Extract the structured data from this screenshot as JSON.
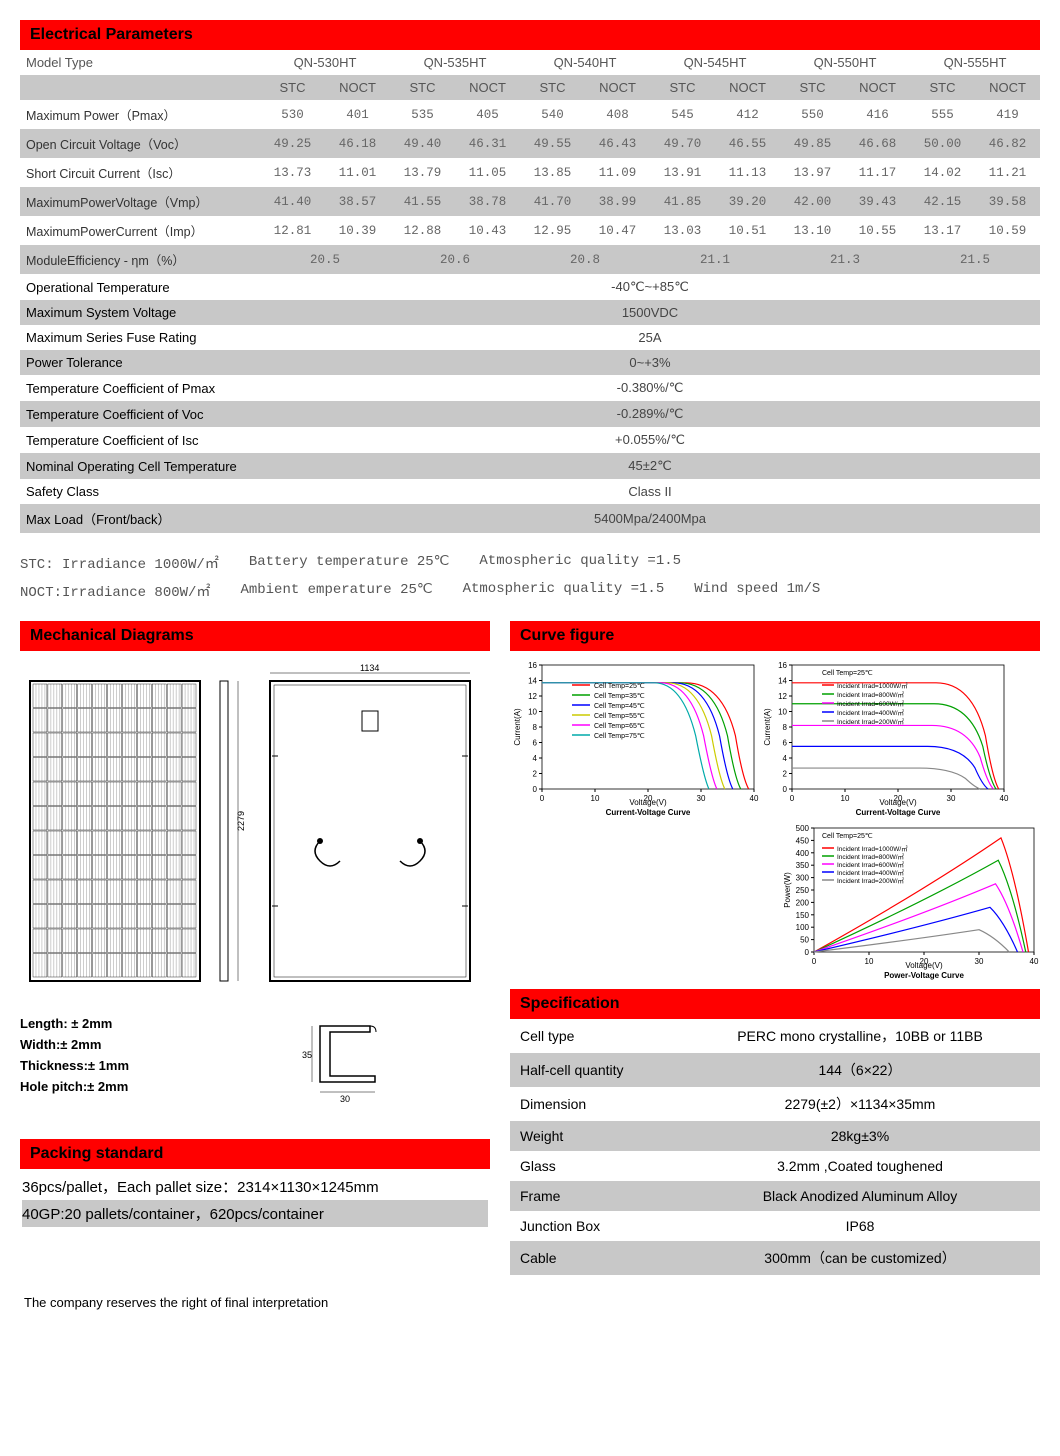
{
  "headers": {
    "electrical": "Electrical Parameters",
    "mechanical": "Mechanical Diagrams",
    "curve": "Curve figure",
    "spec": "Specification",
    "packing": "Packing standard"
  },
  "models": [
    "QN-530HT",
    "QN-535HT",
    "QN-540HT",
    "QN-545HT",
    "QN-550HT",
    "QN-555HT"
  ],
  "stc_labels": [
    "STC",
    "NOCT"
  ],
  "model_type_label": "Model Type",
  "elec_rows": [
    {
      "label": "Maximum Power（Pmax）",
      "vals": [
        "530",
        "401",
        "535",
        "405",
        "540",
        "408",
        "545",
        "412",
        "550",
        "416",
        "555",
        "419"
      ],
      "grey": false
    },
    {
      "label": "Open Circuit Voltage（Voc）",
      "vals": [
        "49.25",
        "46.18",
        "49.40",
        "46.31",
        "49.55",
        "46.43",
        "49.70",
        "46.55",
        "49.85",
        "46.68",
        "50.00",
        "46.82"
      ],
      "grey": true
    },
    {
      "label": "Short Circuit Current（Isc）",
      "vals": [
        "13.73",
        "11.01",
        "13.79",
        "11.05",
        "13.85",
        "11.09",
        "13.91",
        "11.13",
        "13.97",
        "11.17",
        "14.02",
        "11.21"
      ],
      "grey": false
    },
    {
      "label": "MaximumPowerVoltage（Vmp）",
      "vals": [
        "41.40",
        "38.57",
        "41.55",
        "38.78",
        "41.70",
        "38.99",
        "41.85",
        "39.20",
        "42.00",
        "39.43",
        "42.15",
        "39.58"
      ],
      "grey": true
    },
    {
      "label": "MaximumPowerCurrent（Imp）",
      "vals": [
        "12.81",
        "10.39",
        "12.88",
        "10.43",
        "12.95",
        "10.47",
        "13.03",
        "10.51",
        "13.10",
        "10.55",
        "13.17",
        "10.59"
      ],
      "grey": false
    }
  ],
  "eff_row": {
    "label": "ModuleEfficiency - ηm（%）",
    "vals": [
      "20.5",
      "20.6",
      "20.8",
      "21.1",
      "21.3",
      "21.5"
    ]
  },
  "single_rows": [
    {
      "label": "Operational Temperature",
      "val": "-40℃~+85℃",
      "grey": false
    },
    {
      "label": "Maximum System Voltage",
      "val": "1500VDC",
      "grey": true
    },
    {
      "label": "Maximum Series Fuse Rating",
      "val": "25A",
      "grey": false
    },
    {
      "label": "Power Tolerance",
      "val": "0~+3%",
      "grey": true
    },
    {
      "label": "Temperature Coefficient of Pmax",
      "val": "-0.380%/℃",
      "grey": false
    },
    {
      "label": "Temperature Coefficient of Voc",
      "val": "-0.289%/℃",
      "grey": true
    },
    {
      "label": "Temperature Coefficient of Isc",
      "val": "+0.055%/℃",
      "grey": false
    },
    {
      "label": "Nominal Operating Cell Temperature",
      "val": "45±2℃",
      "grey": true
    },
    {
      "label": "Safety Class",
      "val": "Class II",
      "grey": false
    },
    {
      "label": "Max Load（Front/back）",
      "val": "5400Mpa/2400Mpa",
      "grey": true
    }
  ],
  "notes": {
    "l1a": "STC: Irradiance 1000W/㎡",
    "l1b": "Battery temperature 25℃",
    "l1c": "Atmospheric quality =1.5",
    "l2a": "NOCT:Irradiance 800W/㎡",
    "l2b": "Ambient emperature 25℃",
    "l2c": "Atmospheric quality =1.5",
    "l2d": "Wind speed 1m/S"
  },
  "mech": {
    "width_dim": "1134",
    "height_dim": "2279",
    "profile_h": "35",
    "profile_w": "30",
    "tol_length": "Length: ± 2mm",
    "tol_width": "Width:± 2mm",
    "tol_thick": "Thickness:± 1mm",
    "tol_hole": "Hole pitch:± 2mm",
    "panel_cols": 11,
    "panel_rows_half": 6
  },
  "spec2": [
    {
      "label": "Cell type",
      "val": "PERC mono crystalline，10BB or 11BB",
      "grey": false
    },
    {
      "label": "Half-cell quantity",
      "val": "144（6×22）",
      "grey": true
    },
    {
      "label": "Dimension",
      "val": "2279(±2）×1134×35mm",
      "grey": false
    },
    {
      "label": "Weight",
      "val": "28kg±3%",
      "grey": true
    },
    {
      "label": "Glass",
      "val": "3.2mm ,Coated toughened",
      "grey": false
    },
    {
      "label": "Frame",
      "val": "Black Anodized Aluminum Alloy",
      "grey": true
    },
    {
      "label": "Junction Box",
      "val": "IP68",
      "grey": false
    },
    {
      "label": "Cable",
      "val": "300mm（can be customized）",
      "grey": true
    }
  ],
  "packing": {
    "l1": "36pcs/pallet，Each pallet size：2314×1130×1245mm",
    "l2": "40GP:20 pallets/container，620pcs/container"
  },
  "footer": "The company reserves the right of final interpretation",
  "charts": {
    "iv_temp": {
      "title": "Current-Voltage Curve",
      "xlabel": "Voltage(V)",
      "ylabel": "Current(A)",
      "xlim": [
        0,
        40
      ],
      "ylim": [
        0,
        16
      ],
      "xticks": [
        0,
        10,
        20,
        30,
        40
      ],
      "yticks": [
        0,
        2,
        4,
        6,
        8,
        10,
        12,
        14,
        16
      ],
      "series": [
        {
          "label": "Cell Temp=25℃",
          "color": "#ff0000",
          "isc": 13.7,
          "knee": 34,
          "voc": 39
        },
        {
          "label": "Cell Temp=35℃",
          "color": "#00a000",
          "isc": 13.7,
          "knee": 32.5,
          "voc": 37.5
        },
        {
          "label": "Cell Temp=45℃",
          "color": "#0000ff",
          "isc": 13.7,
          "knee": 31,
          "voc": 36
        },
        {
          "label": "Cell Temp=55℃",
          "color": "#cccc00",
          "isc": 13.7,
          "knee": 29.5,
          "voc": 34.5
        },
        {
          "label": "Cell Temp=65℃",
          "color": "#ff00ff",
          "isc": 13.7,
          "knee": 28,
          "voc": 33
        },
        {
          "label": "Cell Temp=75℃",
          "color": "#00aaaa",
          "isc": 13.7,
          "knee": 26.5,
          "voc": 31.5
        }
      ]
    },
    "iv_irrad": {
      "title": "Current-Voltage Curve",
      "xlabel": "Voltage(V)",
      "ylabel": "Current(A)",
      "cell_temp": "Cell Temp=25℃",
      "xlim": [
        0,
        40
      ],
      "ylim": [
        0,
        16
      ],
      "xticks": [
        0,
        10,
        20,
        30,
        40
      ],
      "yticks": [
        0,
        2,
        4,
        6,
        8,
        10,
        12,
        14,
        16
      ],
      "series": [
        {
          "label": "Incident Irrad=1000W/㎡",
          "color": "#ff0000",
          "isc": 13.7,
          "knee": 34,
          "voc": 39
        },
        {
          "label": "Incident Irrad=800W/㎡",
          "color": "#00a000",
          "isc": 11.0,
          "knee": 33.5,
          "voc": 38.5
        },
        {
          "label": "Incident Irrad=600W/㎡",
          "color": "#ff00ff",
          "isc": 8.2,
          "knee": 33,
          "voc": 38
        },
        {
          "label": "Incident Irrad=400W/㎡",
          "color": "#0000ff",
          "isc": 5.5,
          "knee": 32,
          "voc": 37
        },
        {
          "label": "Incident Irrad=200W/㎡",
          "color": "#888888",
          "isc": 2.7,
          "knee": 30,
          "voc": 35.5
        }
      ]
    },
    "pv_irrad": {
      "title": "Power-Voltage Curve",
      "xlabel": "Voltage(V)",
      "ylabel": "Power(W)",
      "cell_temp": "Cell Temp=25℃",
      "xlim": [
        0,
        40
      ],
      "ylim": [
        0,
        500
      ],
      "xticks": [
        0,
        10,
        20,
        30,
        40
      ],
      "yticks": [
        0,
        50,
        100,
        150,
        200,
        250,
        300,
        350,
        400,
        450,
        500
      ],
      "series": [
        {
          "label": "Incident Irrad=1000W/㎡",
          "color": "#ff0000",
          "pmax": 460,
          "vmp": 34,
          "voc": 39
        },
        {
          "label": "Incident Irrad=800W/㎡",
          "color": "#00a000",
          "pmax": 370,
          "vmp": 33.5,
          "voc": 38.5
        },
        {
          "label": "Incident Irrad=600W/㎡",
          "color": "#ff00ff",
          "pmax": 275,
          "vmp": 33,
          "voc": 38
        },
        {
          "label": "Incident Irrad=400W/㎡",
          "color": "#0000ff",
          "pmax": 180,
          "vmp": 32,
          "voc": 37
        },
        {
          "label": "Incident Irrad=200W/㎡",
          "color": "#888888",
          "pmax": 90,
          "vmp": 30,
          "voc": 35.5
        }
      ]
    },
    "style": {
      "bg": "#ffffff",
      "axis_color": "#000",
      "font_size": 8,
      "line_width": 1.2
    }
  }
}
